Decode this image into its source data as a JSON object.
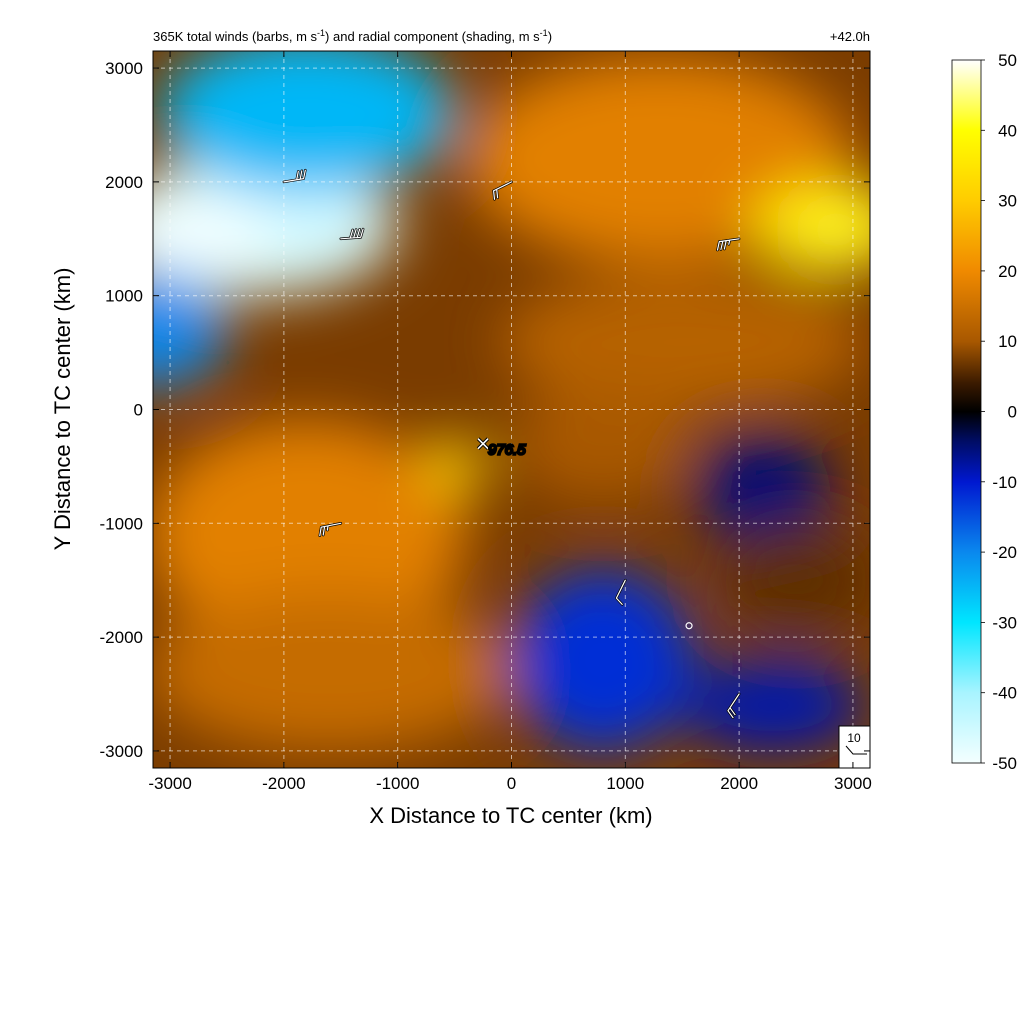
{
  "chart_data": {
    "type": "heatmap",
    "title_left": "365K total winds (barbs, m s",
    "title_left_sup": "-1",
    "title_left_mid": ") and radial component (shading, m s",
    "title_left_sup2": "-1",
    "title_left_end": ")",
    "title_right": "+42.0h",
    "xlabel": "X Distance to TC center (km)",
    "ylabel": "Y Distance to TC center (km)",
    "xlim": [
      -3150,
      3150
    ],
    "ylim": [
      -3150,
      3150
    ],
    "x_ticks": [
      -3000,
      -2000,
      -1000,
      0,
      1000,
      2000,
      3000
    ],
    "y_ticks": [
      -3000,
      -2000,
      -1000,
      0,
      1000,
      2000,
      3000
    ],
    "x_tick_labels": [
      "-3000",
      "-2000",
      "-1000",
      "0",
      "1000",
      "2000",
      "3000"
    ],
    "y_tick_labels": [
      "-3000",
      "-2000",
      "-1000",
      "0",
      "1000",
      "2000",
      "3000"
    ],
    "grid": true,
    "colorbar": {
      "min": -50,
      "max": 50,
      "ticks": [
        -50,
        -40,
        -30,
        -20,
        -10,
        0,
        10,
        20,
        30,
        40,
        50
      ],
      "tick_labels": [
        "-50",
        "-40",
        "-30",
        "-20",
        "-10",
        "0",
        "10",
        "20",
        "30",
        "40",
        "50"
      ],
      "stops": [
        {
          "value": -50,
          "color": "#f4ffff"
        },
        {
          "value": -40,
          "color": "#a8f4ff"
        },
        {
          "value": -30,
          "color": "#00e6ff"
        },
        {
          "value": -20,
          "color": "#0a88ee"
        },
        {
          "value": -10,
          "color": "#0018d0"
        },
        {
          "value": -4,
          "color": "#000c60"
        },
        {
          "value": 0,
          "color": "#000000"
        },
        {
          "value": 4,
          "color": "#3a1a00"
        },
        {
          "value": 10,
          "color": "#a85800"
        },
        {
          "value": 20,
          "color": "#f08a00"
        },
        {
          "value": 30,
          "color": "#ffcc00"
        },
        {
          "value": 40,
          "color": "#ffff00"
        },
        {
          "value": 50,
          "color": "#ffffff"
        }
      ]
    },
    "features": [
      {
        "name": "inflow-northwest",
        "x": -2300,
        "y": 1600,
        "rx": 1300,
        "ry": 600,
        "value": -46
      },
      {
        "name": "inflow-northwest-core",
        "x": -2800,
        "y": 1550,
        "rx": 700,
        "ry": 300,
        "value": -50
      },
      {
        "name": "inflow-north",
        "x": -1800,
        "y": 2600,
        "rx": 1300,
        "ry": 700,
        "value": -25
      },
      {
        "name": "inflow-west-edge",
        "x": -3100,
        "y": 700,
        "rx": 600,
        "ry": 500,
        "value": -20
      },
      {
        "name": "outflow-northeast",
        "x": 1300,
        "y": 2200,
        "rx": 1700,
        "ry": 900,
        "value": 18
      },
      {
        "name": "outflow-east-jet",
        "x": 2800,
        "y": 1600,
        "rx": 700,
        "ry": 400,
        "value": 35
      },
      {
        "name": "outflow-east-jet-core",
        "x": 2850,
        "y": 1580,
        "rx": 300,
        "ry": 180,
        "value": 42
      },
      {
        "name": "outflow-southwest",
        "x": -1800,
        "y": -1100,
        "rx": 1400,
        "ry": 1000,
        "value": 18
      },
      {
        "name": "outflow-west-center",
        "x": -500,
        "y": -500,
        "rx": 250,
        "ry": 250,
        "value": 32
      },
      {
        "name": "outflow-south",
        "x": -1600,
        "y": -2300,
        "rx": 1600,
        "ry": 700,
        "value": 14
      },
      {
        "name": "outflow-east-mid",
        "x": 1500,
        "y": 600,
        "rx": 1600,
        "ry": 600,
        "value": 12
      },
      {
        "name": "inflow-south",
        "x": 800,
        "y": -2200,
        "rx": 800,
        "ry": 800,
        "value": -12
      },
      {
        "name": "inflow-southeast",
        "x": 2300,
        "y": -2600,
        "rx": 800,
        "ry": 400,
        "value": -8
      },
      {
        "name": "inflow-east",
        "x": 2200,
        "y": -700,
        "rx": 600,
        "ry": 500,
        "value": -5
      },
      {
        "name": "outflow-east-south",
        "x": 2500,
        "y": -1500,
        "rx": 700,
        "ry": 500,
        "value": 6
      },
      {
        "name": "outflow-center-east",
        "x": 800,
        "y": -300,
        "rx": 800,
        "ry": 500,
        "value": 10
      }
    ],
    "wind_barbs": [
      {
        "x": -2000,
        "y": 2000,
        "u": -30,
        "v": -5
      },
      {
        "x": -1500,
        "y": 1500,
        "u": -40,
        "v": -3
      },
      {
        "x": 0,
        "y": 2000,
        "u": 20,
        "v": 10
      },
      {
        "x": 2000,
        "y": 1500,
        "u": 35,
        "v": 5
      },
      {
        "x": -1500,
        "y": -1000,
        "u": 25,
        "v": 5
      },
      {
        "x": 1000,
        "y": -1500,
        "u": 5,
        "v": 10
      },
      {
        "x": 2000,
        "y": -2500,
        "u": 10,
        "v": 15
      }
    ],
    "reference_barb_label": "10",
    "center_marker": {
      "x": -250,
      "y": -300,
      "label": "976.5"
    },
    "small_circle": {
      "x": 1560,
      "y": -1900
    }
  }
}
